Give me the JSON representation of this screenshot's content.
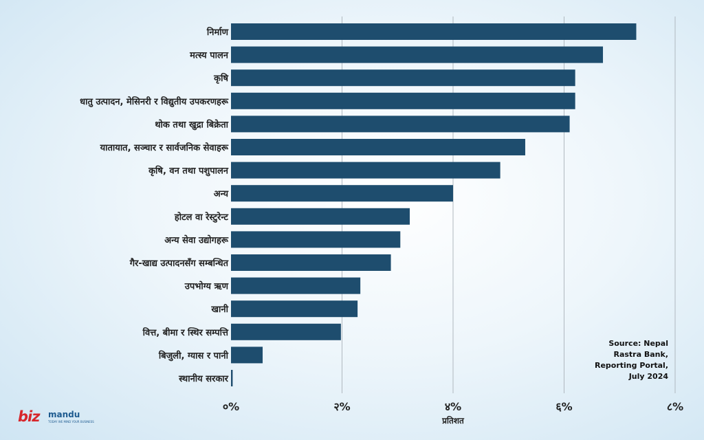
{
  "chart_data": {
    "type": "bar",
    "orientation": "horizontal",
    "categories": [
      "निर्माण",
      "मत्स्य पालन",
      "कृषि",
      "धातु उत्पादन, मेसिनरी र विद्युतीय उपकरणहरू",
      "थोक तथा खुद्रा बिक्रेता",
      "यातायात, सञ्चार र सार्वजनिक सेवाहरू",
      "कृषि, वन तथा पशुपालन",
      "अन्य",
      "होटल वा रेस्टुरेन्ट",
      "अन्य सेवा उद्योगहरू",
      "गैर-खाद्य उत्पादनसँग सम्बन्धित",
      "उपभोग्य ऋण",
      "खानी",
      "वित्त, बीमा र स्थिर सम्पत्ति",
      "बिजुली, ग्यास र पानी",
      "स्थानीय सरकार"
    ],
    "values": [
      7.3,
      6.7,
      6.2,
      6.2,
      6.1,
      5.3,
      4.85,
      4.0,
      3.22,
      3.05,
      2.88,
      2.33,
      2.28,
      1.98,
      0.57,
      0.03
    ],
    "xlim": [
      0,
      8
    ],
    "xticks": [
      0,
      2,
      4,
      6,
      8
    ],
    "xtick_labels": [
      "०%",
      "२%",
      "४%",
      "६%",
      "८%"
    ],
    "xlabel": "प्रतिशत",
    "grid": "vertical",
    "bar_color": "#1e4d6e",
    "grid_color": "#b0b8bf"
  },
  "source_text": "Source: Nepal\nRastra Bank,\nReporting Portal,\nJuly 2024",
  "logo": {
    "biz": "biz",
    "mandu": "mandu",
    "tagline": "TODAY WE MIND YOUR BUSINESS",
    "biz_color": "#d7262b",
    "mandu_color": "#1d5a8f"
  }
}
